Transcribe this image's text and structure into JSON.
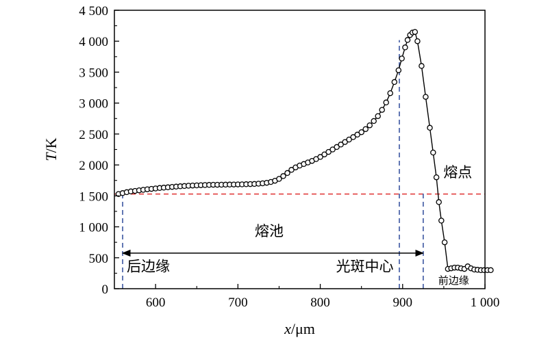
{
  "chart_data": {
    "type": "line",
    "xlabel": {
      "italic": "x",
      "rest": "/μm"
    },
    "ylabel": {
      "italic": "T",
      "rest": "/K"
    },
    "xlim": [
      550,
      1000
    ],
    "ylim": [
      0,
      4500
    ],
    "xticks": [
      600,
      700,
      800,
      900,
      1000
    ],
    "yticks": [
      0,
      500,
      1000,
      1500,
      2000,
      2500,
      3000,
      3500,
      4000,
      4500
    ],
    "xtick_labels": [
      "600",
      "700",
      "800",
      "900",
      "1 000"
    ],
    "ytick_labels": [
      "0",
      "500",
      "1 000",
      "1 500",
      "2 000",
      "2 500",
      "3 000",
      "3 500",
      "4 000",
      "4 500"
    ],
    "grid": false,
    "series": [
      {
        "marker": "open-circle",
        "color": "#000000",
        "points": [
          [
            555,
            1530
          ],
          [
            560,
            1545
          ],
          [
            565,
            1560
          ],
          [
            570,
            1572
          ],
          [
            575,
            1580
          ],
          [
            580,
            1590
          ],
          [
            585,
            1598
          ],
          [
            590,
            1606
          ],
          [
            595,
            1613
          ],
          [
            600,
            1620
          ],
          [
            605,
            1627
          ],
          [
            610,
            1633
          ],
          [
            615,
            1639
          ],
          [
            620,
            1645
          ],
          [
            625,
            1650
          ],
          [
            630,
            1655
          ],
          [
            635,
            1660
          ],
          [
            640,
            1664
          ],
          [
            645,
            1667
          ],
          [
            650,
            1670
          ],
          [
            655,
            1673
          ],
          [
            660,
            1675
          ],
          [
            665,
            1677
          ],
          [
            670,
            1679
          ],
          [
            675,
            1680
          ],
          [
            680,
            1681
          ],
          [
            685,
            1682
          ],
          [
            690,
            1683
          ],
          [
            695,
            1684
          ],
          [
            700,
            1685
          ],
          [
            705,
            1686
          ],
          [
            710,
            1688
          ],
          [
            715,
            1690
          ],
          [
            720,
            1693
          ],
          [
            725,
            1697
          ],
          [
            730,
            1703
          ],
          [
            735,
            1712
          ],
          [
            740,
            1725
          ],
          [
            745,
            1745
          ],
          [
            750,
            1775
          ],
          [
            755,
            1820
          ],
          [
            760,
            1870
          ],
          [
            765,
            1920
          ],
          [
            770,
            1960
          ],
          [
            775,
            1990
          ],
          [
            780,
            2015
          ],
          [
            785,
            2040
          ],
          [
            790,
            2065
          ],
          [
            795,
            2095
          ],
          [
            800,
            2130
          ],
          [
            805,
            2170
          ],
          [
            810,
            2210
          ],
          [
            815,
            2250
          ],
          [
            820,
            2290
          ],
          [
            825,
            2330
          ],
          [
            830,
            2370
          ],
          [
            835,
            2410
          ],
          [
            840,
            2450
          ],
          [
            845,
            2490
          ],
          [
            850,
            2530
          ],
          [
            855,
            2580
          ],
          [
            860,
            2640
          ],
          [
            865,
            2710
          ],
          [
            870,
            2790
          ],
          [
            875,
            2890
          ],
          [
            880,
            3010
          ],
          [
            885,
            3160
          ],
          [
            890,
            3340
          ],
          [
            895,
            3530
          ],
          [
            899,
            3720
          ],
          [
            903,
            3900
          ],
          [
            906,
            4020
          ],
          [
            909,
            4100
          ],
          [
            912,
            4140
          ],
          [
            915,
            4150
          ],
          [
            918,
            4000
          ],
          [
            923,
            3600
          ],
          [
            928,
            3100
          ],
          [
            933,
            2600
          ],
          [
            937,
            2200
          ],
          [
            941,
            1800
          ],
          [
            944,
            1400
          ],
          [
            947,
            1100
          ],
          [
            951,
            750
          ],
          [
            955,
            320
          ],
          [
            959,
            330
          ],
          [
            963,
            340
          ],
          [
            967,
            340
          ],
          [
            971,
            330
          ],
          [
            975,
            320
          ],
          [
            979,
            360
          ],
          [
            983,
            330
          ],
          [
            987,
            310
          ],
          [
            991,
            305
          ],
          [
            995,
            300
          ],
          [
            999,
            300
          ],
          [
            1003,
            300
          ],
          [
            1007,
            300
          ]
        ]
      }
    ],
    "reference_lines": [
      {
        "orientation": "horizontal",
        "y": 1530,
        "color": "#e03030",
        "style": "dashed"
      },
      {
        "orientation": "vertical",
        "x": 560,
        "color": "#3a55a0",
        "style": "dashed"
      },
      {
        "orientation": "vertical",
        "x": 896,
        "color": "#3a55a0",
        "style": "dashed"
      },
      {
        "orientation": "vertical",
        "x": 925,
        "color": "#3a55a0",
        "style": "dashed"
      }
    ],
    "span_arrow": {
      "from": 560,
      "to": 925,
      "y": 575
    },
    "annotations": {
      "melting_point": "熔点",
      "melt_pool": "熔池",
      "rear_edge": "后边缘",
      "spot_center": "光斑中心",
      "front_edge": "前边缘"
    }
  }
}
